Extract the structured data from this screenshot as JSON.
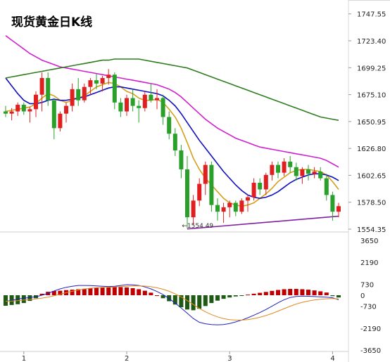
{
  "title": "现货黄金日K线",
  "chart_data": [
    {
      "type": "candlestick",
      "title": "现货黄金日K线",
      "ylim": [
        1554.35,
        1760
      ],
      "y_ticks": [
        "1747.55",
        "1723.40",
        "1699.25",
        "1675.10",
        "1650.95",
        "1626.80",
        "1602.65",
        "1578.50",
        "1554.35"
      ],
      "y_tick_values": [
        1747.55,
        1723.4,
        1699.25,
        1675.1,
        1650.95,
        1626.8,
        1602.65,
        1578.5,
        1554.35
      ],
      "x_ticks": [
        "1",
        "2",
        "3",
        "4"
      ],
      "x_tick_index": [
        3,
        20,
        37,
        54
      ],
      "annotation": "1554.49",
      "annotation_index": 34,
      "up_color": "#e02020",
      "down_color": "#2aa02a",
      "candles": [
        [
          1660,
          1665,
          1655,
          1658
        ],
        [
          1658,
          1663,
          1652,
          1660
        ],
        [
          1660,
          1668,
          1656,
          1666
        ],
        [
          1666,
          1668,
          1657,
          1660
        ],
        [
          1660,
          1664,
          1650,
          1662
        ],
        [
          1662,
          1678,
          1655,
          1675
        ],
        [
          1675,
          1695,
          1660,
          1690
        ],
        [
          1690,
          1695,
          1665,
          1670
        ],
        [
          1670,
          1672,
          1635,
          1645
        ],
        [
          1645,
          1660,
          1642,
          1658
        ],
        [
          1658,
          1668,
          1650,
          1665
        ],
        [
          1665,
          1685,
          1660,
          1680
        ],
        [
          1680,
          1690,
          1665,
          1670
        ],
        [
          1670,
          1685,
          1668,
          1682
        ],
        [
          1682,
          1690,
          1675,
          1688
        ],
        [
          1688,
          1694,
          1680,
          1685
        ],
        [
          1685,
          1692,
          1678,
          1690
        ],
        [
          1690,
          1698,
          1684,
          1693
        ],
        [
          1693,
          1695,
          1662,
          1668
        ],
        [
          1668,
          1672,
          1655,
          1660
        ],
        [
          1660,
          1675,
          1656,
          1672
        ],
        [
          1672,
          1680,
          1660,
          1665
        ],
        [
          1665,
          1670,
          1650,
          1663
        ],
        [
          1663,
          1678,
          1660,
          1675
        ],
        [
          1675,
          1685,
          1668,
          1670
        ],
        [
          1670,
          1680,
          1662,
          1672
        ],
        [
          1672,
          1675,
          1648,
          1655
        ],
        [
          1655,
          1660,
          1635,
          1640
        ],
        [
          1640,
          1645,
          1620,
          1625
        ],
        [
          1625,
          1630,
          1600,
          1608
        ],
        [
          1608,
          1620,
          1555,
          1565
        ],
        [
          1565,
          1585,
          1558,
          1580
        ],
        [
          1580,
          1600,
          1575,
          1595
        ],
        [
          1595,
          1615,
          1585,
          1612
        ],
        [
          1612,
          1615,
          1570,
          1576
        ],
        [
          1576,
          1582,
          1562,
          1570
        ],
        [
          1570,
          1578,
          1560,
          1574
        ],
        [
          1574,
          1580,
          1565,
          1578
        ],
        [
          1578,
          1580,
          1566,
          1570
        ],
        [
          1570,
          1582,
          1568,
          1580
        ],
        [
          1580,
          1585,
          1570,
          1583
        ],
        [
          1583,
          1600,
          1580,
          1596
        ],
        [
          1596,
          1600,
          1585,
          1590
        ],
        [
          1590,
          1605,
          1585,
          1603
        ],
        [
          1603,
          1615,
          1598,
          1612
        ],
        [
          1612,
          1615,
          1600,
          1605
        ],
        [
          1605,
          1618,
          1602,
          1615
        ],
        [
          1615,
          1620,
          1605,
          1610
        ],
        [
          1610,
          1614,
          1598,
          1602
        ],
        [
          1602,
          1610,
          1595,
          1608
        ],
        [
          1608,
          1612,
          1598,
          1604
        ],
        [
          1604,
          1610,
          1600,
          1606
        ],
        [
          1606,
          1610,
          1598,
          1600
        ],
        [
          1600,
          1604,
          1580,
          1585
        ],
        [
          1585,
          1588,
          1562,
          1570
        ],
        [
          1570,
          1578,
          1565,
          1575
        ]
      ],
      "ma_lines": [
        {
          "color": "#d4a017",
          "values": [
            1660,
            1661,
            1662,
            1663,
            1664,
            1667,
            1672,
            1676,
            1674,
            1670,
            1668,
            1670,
            1672,
            1674,
            1678,
            1682,
            1684,
            1686,
            1685,
            1682,
            1678,
            1676,
            1672,
            1670,
            1670,
            1671,
            1668,
            1662,
            1655,
            1645,
            1632,
            1618,
            1608,
            1600,
            1594,
            1588,
            1582,
            1578,
            1576,
            1575,
            1576,
            1578,
            1582,
            1586,
            1591,
            1597,
            1601,
            1605,
            1607,
            1608,
            1608,
            1607,
            1606,
            1603,
            1597,
            1590
          ]
        },
        {
          "color": "#1010c0",
          "values": [
            1690,
            1683,
            1676,
            1670,
            1667,
            1667,
            1668,
            1670,
            1671,
            1670,
            1670,
            1671,
            1672,
            1673,
            1675,
            1677,
            1679,
            1681,
            1682,
            1682,
            1681,
            1680,
            1679,
            1678,
            1677,
            1676,
            1674,
            1670,
            1665,
            1658,
            1650,
            1642,
            1634,
            1627,
            1620,
            1613,
            1606,
            1600,
            1594,
            1589,
            1585,
            1583,
            1582,
            1583,
            1585,
            1588,
            1592,
            1596,
            1599,
            1601,
            1603,
            1604,
            1604,
            1603,
            1601,
            1598
          ]
        },
        {
          "color": "#d020d0",
          "values": [
            1728,
            1724,
            1720,
            1716,
            1712,
            1709,
            1706,
            1704,
            1702,
            1700,
            1699,
            1698,
            1697,
            1696,
            1695,
            1694,
            1693,
            1692,
            1691,
            1690,
            1689,
            1688,
            1687,
            1686,
            1685,
            1684,
            1682,
            1680,
            1677,
            1673,
            1668,
            1663,
            1658,
            1653,
            1649,
            1645,
            1642,
            1639,
            1636,
            1634,
            1632,
            1630,
            1628,
            1627,
            1626,
            1625,
            1624,
            1623,
            1622,
            1621,
            1620,
            1619,
            1618,
            1616,
            1613,
            1610
          ]
        },
        {
          "color": "#2e7d1e",
          "values": [
            1690,
            1691,
            1692,
            1693,
            1694,
            1695,
            1696,
            1697,
            1698,
            1699,
            1700,
            1701,
            1702,
            1703,
            1704,
            1705,
            1706,
            1706,
            1707,
            1707,
            1707,
            1707,
            1707,
            1706,
            1705,
            1704,
            1703,
            1702,
            1701,
            1700,
            1699,
            1697,
            1695,
            1693,
            1691,
            1689,
            1687,
            1685,
            1683,
            1681,
            1679,
            1677,
            1675,
            1673,
            1671,
            1669,
            1667,
            1665,
            1663,
            1661,
            1659,
            1657,
            1655,
            1654,
            1653,
            1652
          ]
        }
      ],
      "trend_line": {
        "color": "#8020a0",
        "from": [
          30,
          1554.5
        ],
        "to": [
          55,
          1566
        ]
      }
    },
    {
      "type": "macd",
      "ylim": [
        -3650,
        3650
      ],
      "y_ticks": [
        "3650",
        "2190",
        "730",
        "0",
        "-730",
        "-2190",
        "-3650"
      ],
      "y_tick_values": [
        3650,
        2190,
        730,
        0,
        -730,
        -2190,
        -3650
      ],
      "pos_color": "#c00000",
      "neg_color": "#1e5a14",
      "histogram": [
        -700,
        -650,
        -600,
        -520,
        -380,
        -200,
        100,
        230,
        280,
        300,
        340,
        370,
        400,
        430,
        470,
        500,
        520,
        540,
        550,
        540,
        520,
        470,
        400,
        300,
        170,
        0,
        -200,
        -400,
        -620,
        -800,
        -950,
        -1000,
        -900,
        -720,
        -520,
        -360,
        -240,
        -150,
        -80,
        -20,
        40,
        100,
        160,
        220,
        290,
        350,
        400,
        420,
        420,
        400,
        370,
        320,
        260,
        180,
        -60,
        -150
      ],
      "diff": [
        -400,
        -350,
        -250,
        -200,
        -150,
        -100,
        0,
        120,
        280,
        420,
        530,
        600,
        650,
        650,
        640,
        620,
        600,
        580,
        600,
        650,
        700,
        690,
        650,
        550,
        420,
        250,
        40,
        -220,
        -520,
        -850,
        -1200,
        -1550,
        -1800,
        -1900,
        -1950,
        -1970,
        -1950,
        -1880,
        -1780,
        -1650,
        -1500,
        -1330,
        -1150,
        -950,
        -730,
        -500,
        -300,
        -150,
        -80,
        -60,
        -70,
        -90,
        -110,
        -130,
        -170,
        -300
      ]
    }
  ]
}
